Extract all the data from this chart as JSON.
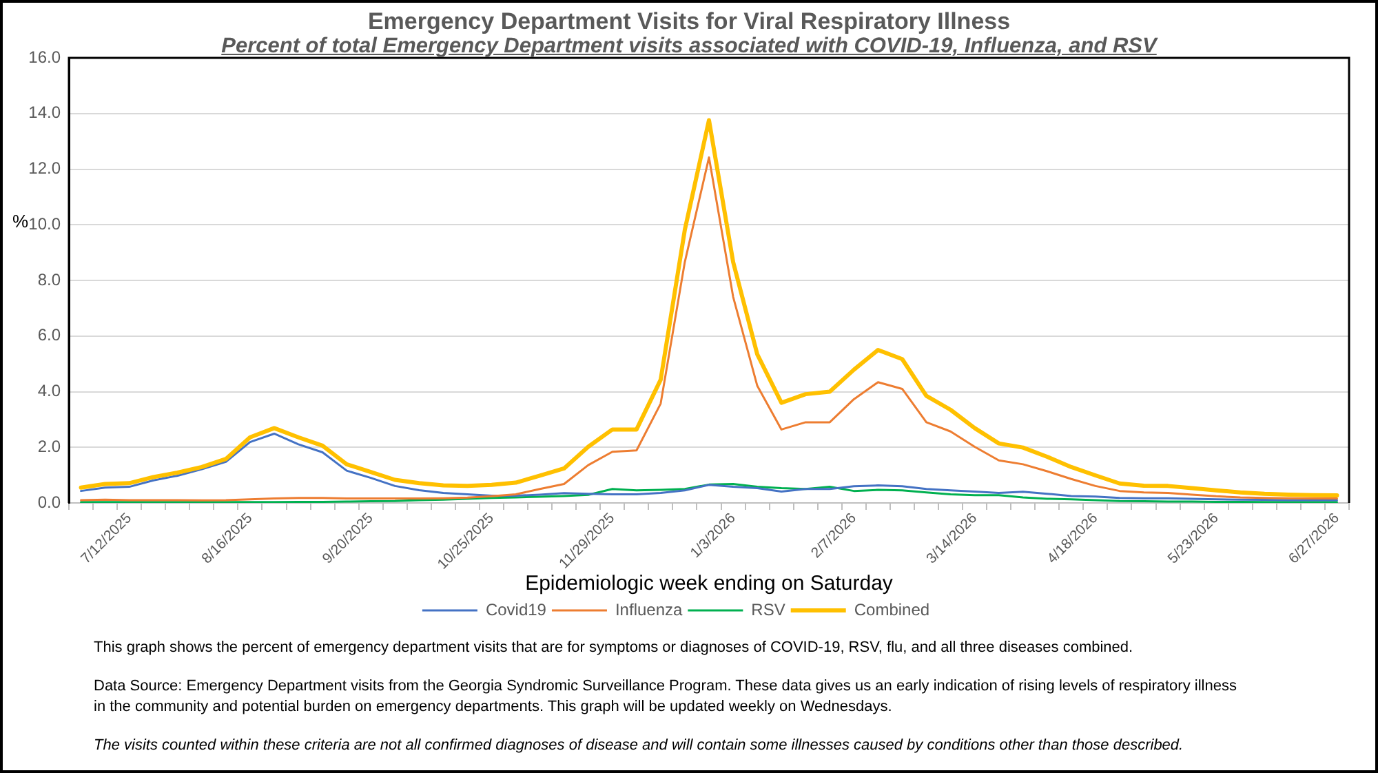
{
  "chart_data": {
    "type": "line",
    "title": "Emergency Department Visits for Viral Respiratory Illness",
    "subtitle": "Percent of total Emergency Department visits associated with COVID-19, Influenza, and RSV",
    "xlabel": "Epidemiologic week ending on Saturday",
    "ylabel": "%",
    "categories": [
      null,
      null,
      "7/12/2025",
      null,
      null,
      null,
      null,
      "8/16/2025",
      null,
      null,
      null,
      null,
      "9/20/2025",
      null,
      null,
      null,
      null,
      "10/25/2025",
      null,
      null,
      null,
      null,
      "11/29/2025",
      null,
      null,
      null,
      null,
      "1/3/2026",
      null,
      null,
      null,
      null,
      "2/7/2026",
      null,
      null,
      null,
      null,
      "3/14/2026",
      null,
      null,
      null,
      null,
      "4/18/2026",
      null,
      null,
      null,
      null,
      "5/23/2026",
      null,
      null,
      null,
      null,
      "6/27/2026"
    ],
    "series": [
      {
        "name": "Covid19",
        "color": "#4472c4",
        "values": [
          0.43,
          0.55,
          0.58,
          0.81,
          0.98,
          1.21,
          1.48,
          2.19,
          2.49,
          2.11,
          1.82,
          1.16,
          0.9,
          0.61,
          0.46,
          0.36,
          0.31,
          0.26,
          0.26,
          0.3,
          0.35,
          0.33,
          0.31,
          0.31,
          0.36,
          0.45,
          0.65,
          0.58,
          0.53,
          0.41,
          0.5,
          0.5,
          0.6,
          0.63,
          0.6,
          0.5,
          0.45,
          0.41,
          0.36,
          0.4,
          0.33,
          0.25,
          0.23,
          0.18,
          0.17,
          0.17,
          0.15,
          0.13,
          0.12,
          0.11,
          0.1,
          0.1,
          0.1
        ]
      },
      {
        "name": "Influenza",
        "color": "#ed7d31",
        "values": [
          0.1,
          0.12,
          0.1,
          0.1,
          0.1,
          0.09,
          0.1,
          0.13,
          0.16,
          0.18,
          0.18,
          0.16,
          0.16,
          0.16,
          0.16,
          0.17,
          0.19,
          0.24,
          0.31,
          0.5,
          0.68,
          1.36,
          1.84,
          1.89,
          3.57,
          8.66,
          12.42,
          7.41,
          4.21,
          2.64,
          2.9,
          2.9,
          3.73,
          4.34,
          4.1,
          2.9,
          2.57,
          2.02,
          1.53,
          1.39,
          1.14,
          0.86,
          0.61,
          0.43,
          0.38,
          0.36,
          0.3,
          0.24,
          0.2,
          0.18,
          0.17,
          0.16,
          0.16
        ]
      },
      {
        "name": "RSV",
        "color": "#00b050",
        "values": [
          0.03,
          0.03,
          0.03,
          0.03,
          0.03,
          0.03,
          0.03,
          0.03,
          0.03,
          0.04,
          0.04,
          0.05,
          0.06,
          0.07,
          0.1,
          0.12,
          0.15,
          0.18,
          0.2,
          0.22,
          0.25,
          0.29,
          0.5,
          0.45,
          0.47,
          0.5,
          0.66,
          0.68,
          0.58,
          0.53,
          0.5,
          0.58,
          0.43,
          0.47,
          0.45,
          0.38,
          0.31,
          0.28,
          0.28,
          0.2,
          0.15,
          0.13,
          0.1,
          0.07,
          0.06,
          0.05,
          0.05,
          0.04,
          0.04,
          0.03,
          0.03,
          0.03,
          0.03
        ]
      },
      {
        "name": "Combined",
        "color": "#ffc000",
        "values": [
          0.55,
          0.68,
          0.71,
          0.93,
          1.09,
          1.29,
          1.58,
          2.36,
          2.69,
          2.36,
          2.06,
          1.39,
          1.11,
          0.83,
          0.71,
          0.63,
          0.61,
          0.65,
          0.73,
          0.98,
          1.24,
          2.02,
          2.64,
          2.64,
          4.43,
          9.82,
          13.76,
          8.66,
          5.34,
          3.6,
          3.91,
          4.0,
          4.79,
          5.5,
          5.17,
          3.85,
          3.35,
          2.69,
          2.14,
          1.99,
          1.66,
          1.29,
          0.99,
          0.7,
          0.62,
          0.61,
          0.53,
          0.45,
          0.38,
          0.33,
          0.3,
          0.28,
          0.27
        ]
      }
    ],
    "ylim": [
      0,
      16
    ],
    "yticks": [
      {
        "value": 0,
        "label": "0.0"
      },
      {
        "value": 2,
        "label": "2.0"
      },
      {
        "value": 4,
        "label": "4.0"
      },
      {
        "value": 6,
        "label": "6.0"
      },
      {
        "value": 8,
        "label": "8.0"
      },
      {
        "value": 10,
        "label": "10.0"
      },
      {
        "value": 12,
        "label": "12.0"
      },
      {
        "value": 14,
        "label": "14.0"
      },
      {
        "value": 16,
        "label": "16.0"
      }
    ],
    "grid": "y",
    "legend": "bottom",
    "annotations": [
      "This graph shows the percent of emergency department visits that are for symptoms or diagnoses of COVID-19, RSV, flu, and all three diseases combined.",
      "Data Source: Emergency Department visits from the Georgia Syndromic Surveillance Program. These data gives us an early indication of rising levels of respiratory illness in the community and potential burden on emergency departments. This graph will be updated weekly on Wednesdays.",
      "The visits counted within these criteria are not all confirmed diagnoses of disease and will contain some illnesses caused by conditions other than those described."
    ]
  }
}
